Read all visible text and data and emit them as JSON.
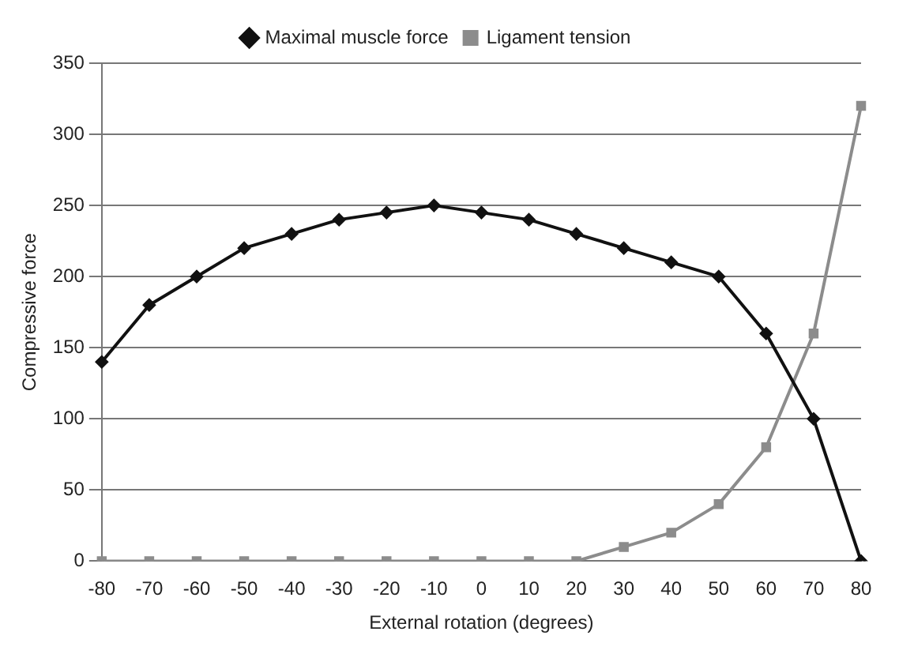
{
  "chart_data": {
    "type": "line",
    "xlabel": "External rotation (degrees)",
    "ylabel": "Compressive force",
    "categories": [
      "-80",
      "-70",
      "-60",
      "-50",
      "-40",
      "-30",
      "-20",
      "-10",
      "0",
      "10",
      "20",
      "30",
      "40",
      "50",
      "60",
      "70",
      "80"
    ],
    "series": [
      {
        "name": "Maximal muscle force",
        "color": "#111111",
        "marker": "diamond",
        "values": [
          140,
          180,
          200,
          220,
          230,
          240,
          245,
          250,
          245,
          240,
          230,
          220,
          210,
          200,
          160,
          100,
          0
        ]
      },
      {
        "name": "Ligament tension",
        "color": "#8c8c8c",
        "marker": "square",
        "values": [
          0,
          0,
          0,
          0,
          0,
          0,
          0,
          0,
          0,
          0,
          0,
          10,
          20,
          40,
          80,
          160,
          320
        ]
      }
    ],
    "ylim": [
      0,
      350
    ],
    "yticks": [
      0,
      50,
      100,
      150,
      200,
      250,
      300,
      350
    ],
    "grid": "y",
    "legend": "top",
    "line_style": "solid"
  }
}
